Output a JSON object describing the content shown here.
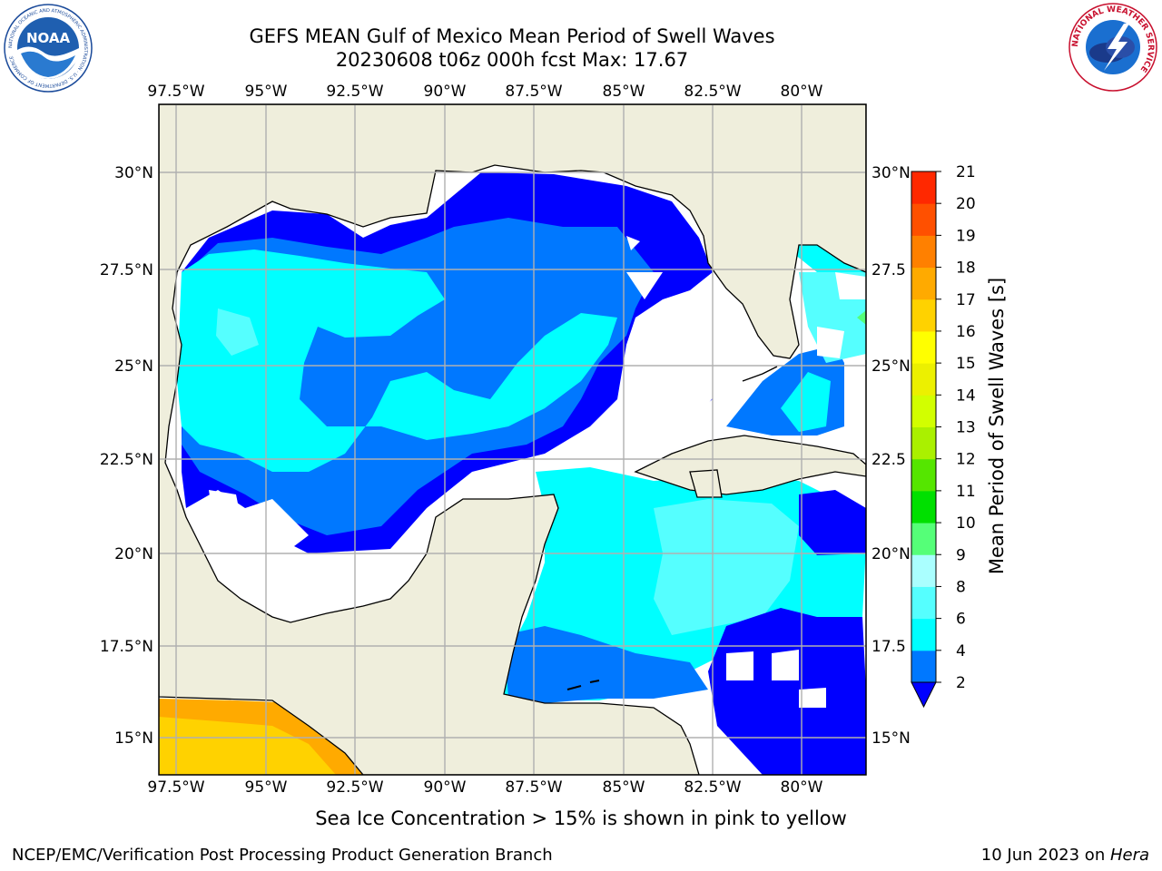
{
  "header": {
    "title_line1": "GEFS MEAN Gulf of Mexico Mean Period of Swell Waves",
    "title_line2": "20230608 t06z 000h fcst   Max: 17.67"
  },
  "map": {
    "lon_labels": [
      "97.5°W",
      "95°W",
      "92.5°W",
      "90°W",
      "87.5°W",
      "85°W",
      "82.5°W",
      "80°W"
    ],
    "lat_labels_left": [
      "30°N",
      "27.5°N",
      "25°N",
      "22.5°N",
      "20°N",
      "17.5°N",
      "15°N"
    ],
    "lat_labels_right": [
      "30°N",
      "27.5",
      "25°N",
      "22.5",
      "20°N",
      "17.5",
      "15°N"
    ],
    "land_color": "#efeedc",
    "grid_color": "#b0b0b0"
  },
  "colorbar": {
    "label": "Mean Period of Swell Waves [s]",
    "ticks": [
      "2",
      "4",
      "6",
      "8",
      "9",
      "10",
      "11",
      "12",
      "13",
      "14",
      "15",
      "16",
      "17",
      "18",
      "19",
      "20",
      "21"
    ],
    "colors": [
      "#0000ff",
      "#0078ff",
      "#00ffff",
      "#55ffff",
      "#aaffff",
      "#55ff78",
      "#00e000",
      "#55e600",
      "#aaf000",
      "#d2ff00",
      "#ecf000",
      "#ffff00",
      "#ffd200",
      "#ffaa00",
      "#ff8000",
      "#ff5000",
      "#ff2800",
      "#ff0000"
    ]
  },
  "note": "Sea Ice Concentration > 15% is shown in pink to yellow",
  "footer": {
    "left": "NCEP/EMC/Verification Post Processing Product Generation Branch",
    "date": "10 Jun 2023 on ",
    "machine": "Hera"
  },
  "logos": {
    "noaa_text": "NOAA",
    "noaa_ring": "NATIONAL OCEANIC AND ATMOSPHERIC ADMINISTRATION · U.S. DEPARTMENT OF COMMERCE",
    "nws_ring": "NATIONAL WEATHER SERVICE"
  }
}
